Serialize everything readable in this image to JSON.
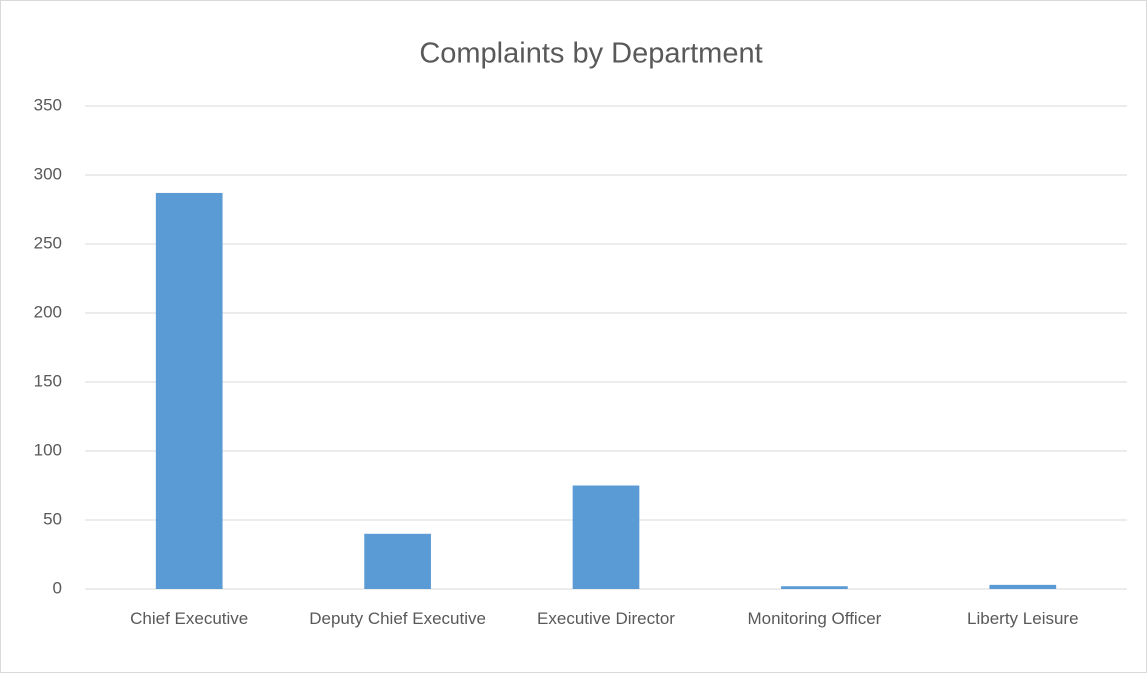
{
  "chart_data": {
    "type": "bar",
    "title": "Complaints by Department",
    "categories": [
      "Chief Executive",
      "Deputy Chief Executive",
      "Executive Director",
      "Monitoring Officer",
      "Liberty Leisure"
    ],
    "values": [
      287,
      40,
      75,
      2,
      3
    ],
    "color": "#5b9bd5",
    "ylim": [
      0,
      350
    ],
    "yticks": [
      0,
      50,
      100,
      150,
      200,
      250,
      300,
      350
    ],
    "grid": true
  }
}
